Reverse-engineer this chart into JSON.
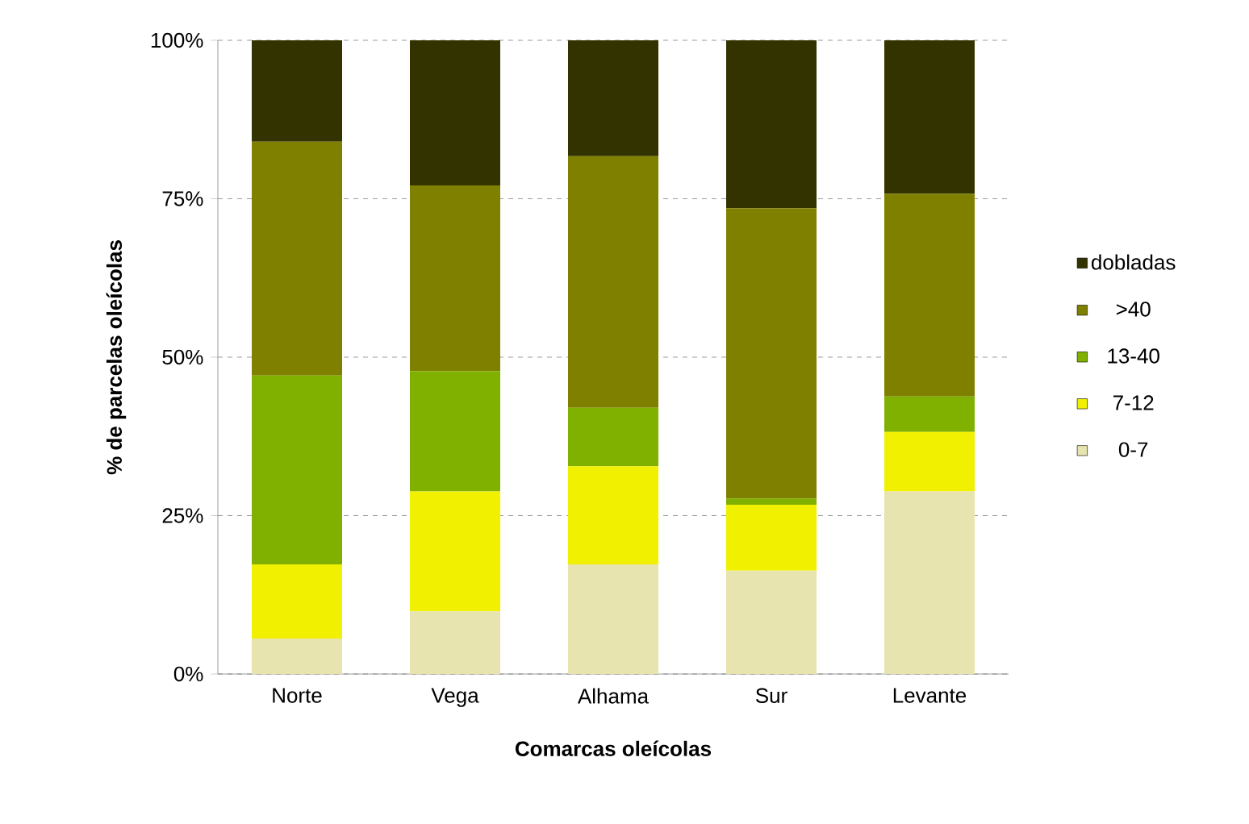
{
  "chart_data": {
    "type": "bar",
    "stacked": true,
    "xlabel": "Comarcas oleícolas",
    "ylabel": "% de parcelas oleícolas",
    "categories": [
      "Norte",
      "Vega",
      "Alhama",
      "Sur",
      "Levante"
    ],
    "series": [
      {
        "name": "0-7",
        "color": "#e8e4b0",
        "values": [
          5.6,
          9.9,
          17.3,
          16.3,
          28.8
        ]
      },
      {
        "name": "7-12",
        "color": "#f0f000",
        "values": [
          11.7,
          18.9,
          15.5,
          10.4,
          9.4
        ]
      },
      {
        "name": "13-40",
        "color": "#80b000",
        "values": [
          29.8,
          19.0,
          9.2,
          1.0,
          5.6
        ]
      },
      {
        "name": ">40",
        "color": "#808000",
        "values": [
          36.9,
          29.3,
          39.7,
          45.8,
          32.0
        ]
      },
      {
        "name": "dobladas",
        "color": "#333300",
        "values": [
          16.0,
          22.9,
          18.3,
          26.5,
          24.2
        ]
      }
    ],
    "ylim": [
      0,
      100
    ],
    "yticks": [
      {
        "value": 0,
        "label": "0%"
      },
      {
        "value": 25,
        "label": "25%"
      },
      {
        "value": 50,
        "label": "50%"
      },
      {
        "value": 75,
        "label": "75%"
      },
      {
        "value": 100,
        "label": "100%"
      }
    ],
    "grid": "y",
    "legend": "right"
  }
}
